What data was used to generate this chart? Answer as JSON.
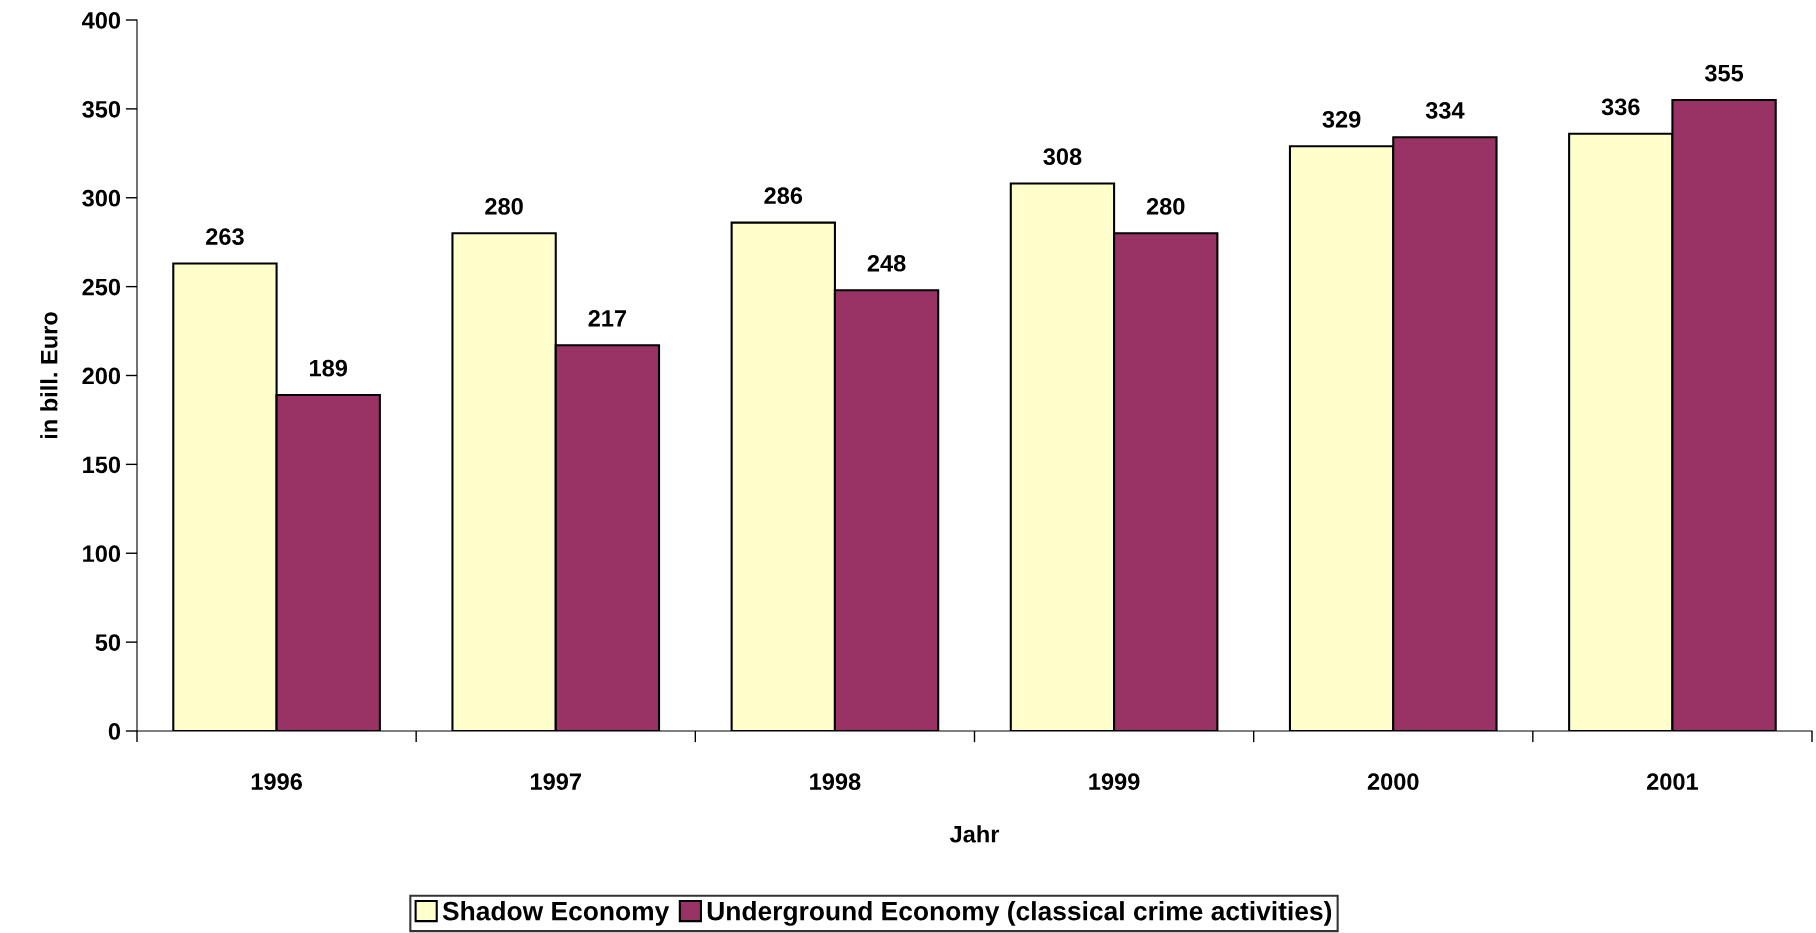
{
  "chart_data": {
    "type": "bar",
    "xlabel": "Jahr",
    "ylabel": "in bill. Euro",
    "categories": [
      "1996",
      "1997",
      "1998",
      "1999",
      "2000",
      "2001"
    ],
    "series": [
      {
        "name": "Shadow Economy",
        "color": "#ffffcc",
        "values": [
          263,
          280,
          286,
          308,
          329,
          336
        ]
      },
      {
        "name": "Underground Economy (classical crime activities)",
        "color": "#993366",
        "values": [
          189,
          217,
          248,
          280,
          334,
          355
        ]
      }
    ],
    "ylim": [
      0,
      400
    ],
    "yticks": [
      0,
      50,
      100,
      150,
      200,
      250,
      300,
      350,
      400
    ],
    "data_labels": true,
    "grid": false,
    "legend": "bottom"
  }
}
